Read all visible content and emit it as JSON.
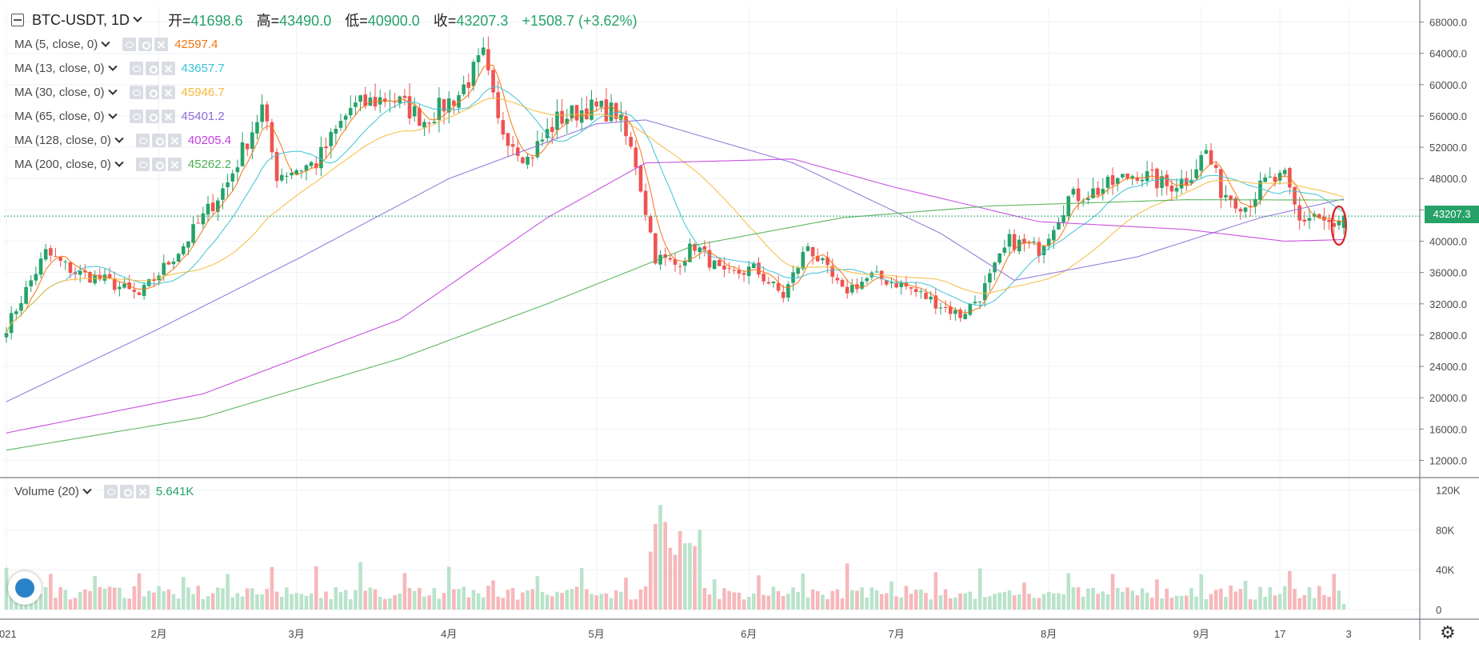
{
  "header": {
    "symbol": "BTC-USDT, 1D",
    "open_label": "开=",
    "open": "41698.6",
    "high_label": "高=",
    "high": "43490.0",
    "low_label": "低=",
    "low": "40900.0",
    "close_label": "收=",
    "close": "43207.3",
    "change": "+1508.7 (+3.62%)"
  },
  "indicators": [
    {
      "label": "MA (5, close, 0)",
      "value": "42597.4",
      "color": "#f5740f"
    },
    {
      "label": "MA (13, close, 0)",
      "value": "43657.7",
      "color": "#3cc2d6"
    },
    {
      "label": "MA (30, close, 0)",
      "value": "45946.7",
      "color": "#f6b93b"
    },
    {
      "label": "MA (65, close, 0)",
      "value": "45401.2",
      "color": "#8e6fd8"
    },
    {
      "label": "MA (128, close, 0)",
      "value": "40205.4",
      "color": "#c23fe0"
    },
    {
      "label": "MA (200, close, 0)",
      "value": "45262.2",
      "color": "#4caf50"
    }
  ],
  "volume_pane": {
    "label": "Volume (20)",
    "value": "5.641K",
    "value_color": "#26a269"
  },
  "last_price_tag": "43207.3",
  "colors": {
    "up": "#26a269",
    "down": "#ef5350",
    "up_vol": "#b9e3cb",
    "down_vol": "#f6b8bb",
    "grid": "#eef1f5"
  },
  "chart_data": {
    "type": "candlestick",
    "price_axis": {
      "ylim": [
        10000,
        70000
      ],
      "ticks": [
        "68000.0",
        "64000.0",
        "60000.0",
        "56000.0",
        "52000.0",
        "48000.0",
        "44000.0",
        "40000.0",
        "36000.0",
        "32000.0",
        "28000.0",
        "24000.0",
        "20000.0",
        "16000.0",
        "12000.0"
      ]
    },
    "volume_axis": {
      "ylim": [
        0,
        122000
      ],
      "ticks": [
        "120K",
        "80K",
        "40K",
        "0"
      ]
    },
    "x_axis_labels": [
      ":021",
      "2月",
      "3月",
      "4月",
      "5月",
      "6月",
      "7月",
      "8月",
      "9月",
      "17",
      "3"
    ],
    "close_anchors": [
      {
        "day": 0,
        "close": 29000
      },
      {
        "day": 8,
        "close": 38500
      },
      {
        "day": 14,
        "close": 36000
      },
      {
        "day": 20,
        "close": 35000
      },
      {
        "day": 27,
        "close": 33000
      },
      {
        "day": 36,
        "close": 39500
      },
      {
        "day": 45,
        "close": 47500
      },
      {
        "day": 52,
        "close": 57000
      },
      {
        "day": 55,
        "close": 48500
      },
      {
        "day": 63,
        "close": 50000
      },
      {
        "day": 70,
        "close": 57000
      },
      {
        "day": 78,
        "close": 58500
      },
      {
        "day": 85,
        "close": 55500
      },
      {
        "day": 92,
        "close": 58800
      },
      {
        "day": 97,
        "close": 63500
      },
      {
        "day": 100,
        "close": 55000
      },
      {
        "day": 106,
        "close": 50500
      },
      {
        "day": 112,
        "close": 55500
      },
      {
        "day": 118,
        "close": 57000
      },
      {
        "day": 124,
        "close": 56500
      },
      {
        "day": 128,
        "close": 50000
      },
      {
        "day": 132,
        "close": 38000
      },
      {
        "day": 136,
        "close": 37000
      },
      {
        "day": 140,
        "close": 39500
      },
      {
        "day": 146,
        "close": 35500
      },
      {
        "day": 152,
        "close": 36500
      },
      {
        "day": 158,
        "close": 33000
      },
      {
        "day": 163,
        "close": 39500
      },
      {
        "day": 170,
        "close": 33500
      },
      {
        "day": 176,
        "close": 35500
      },
      {
        "day": 182,
        "close": 34500
      },
      {
        "day": 188,
        "close": 32500
      },
      {
        "day": 194,
        "close": 30500
      },
      {
        "day": 198,
        "close": 33000
      },
      {
        "day": 204,
        "close": 40000
      },
      {
        "day": 210,
        "close": 39000
      },
      {
        "day": 216,
        "close": 45500
      },
      {
        "day": 222,
        "close": 46500
      },
      {
        "day": 230,
        "close": 48800
      },
      {
        "day": 236,
        "close": 47000
      },
      {
        "day": 240,
        "close": 48000
      },
      {
        "day": 244,
        "close": 51500
      },
      {
        "day": 247,
        "close": 46500
      },
      {
        "day": 252,
        "close": 44500
      },
      {
        "day": 256,
        "close": 47500
      },
      {
        "day": 260,
        "close": 48000
      },
      {
        "day": 263,
        "close": 42500
      },
      {
        "day": 266,
        "close": 43500
      },
      {
        "day": 270,
        "close": 41500
      },
      {
        "day": 272,
        "close": 43200
      }
    ],
    "ma_series": [
      {
        "name": "MA (5, close, 0)",
        "color": "#f5740f",
        "period": 5
      },
      {
        "name": "MA (13, close, 0)",
        "color": "#3cc2d6",
        "period": 13
      },
      {
        "name": "MA (30, close, 0)",
        "color": "#f6b93b",
        "period": 30
      },
      {
        "name": "MA (65, close, 0)",
        "color": "#8e6fd8",
        "period": 65
      },
      {
        "name": "MA (128, close, 0)",
        "color": "#c23fe0",
        "period": 128
      },
      {
        "name": "MA (200, close, 0)",
        "color": "#4caf50",
        "period": 200
      }
    ],
    "ma_curves": {
      "MA (65, close, 0)": [
        [
          0,
          19500
        ],
        [
          30,
          28500
        ],
        [
          60,
          38000
        ],
        [
          90,
          48000
        ],
        [
          120,
          55000
        ],
        [
          130,
          55500
        ],
        [
          160,
          50000
        ],
        [
          190,
          41000
        ],
        [
          205,
          35000
        ],
        [
          230,
          38000
        ],
        [
          255,
          43000
        ],
        [
          272,
          45401
        ]
      ],
      "MA (128, close, 0)": [
        [
          0,
          15500
        ],
        [
          40,
          20500
        ],
        [
          80,
          30000
        ],
        [
          110,
          43000
        ],
        [
          130,
          50000
        ],
        [
          160,
          50500
        ],
        [
          180,
          47000
        ],
        [
          210,
          42500
        ],
        [
          240,
          41500
        ],
        [
          260,
          40000
        ],
        [
          272,
          40205
        ]
      ],
      "MA (200, close, 0)": [
        [
          0,
          13300
        ],
        [
          40,
          17500
        ],
        [
          80,
          25000
        ],
        [
          110,
          32000
        ],
        [
          140,
          39500
        ],
        [
          170,
          43000
        ],
        [
          200,
          44500
        ],
        [
          240,
          45300
        ],
        [
          272,
          45262
        ]
      ]
    },
    "annotation": {
      "type": "ellipse",
      "color": "#e01e1e",
      "around_day": 271
    }
  }
}
